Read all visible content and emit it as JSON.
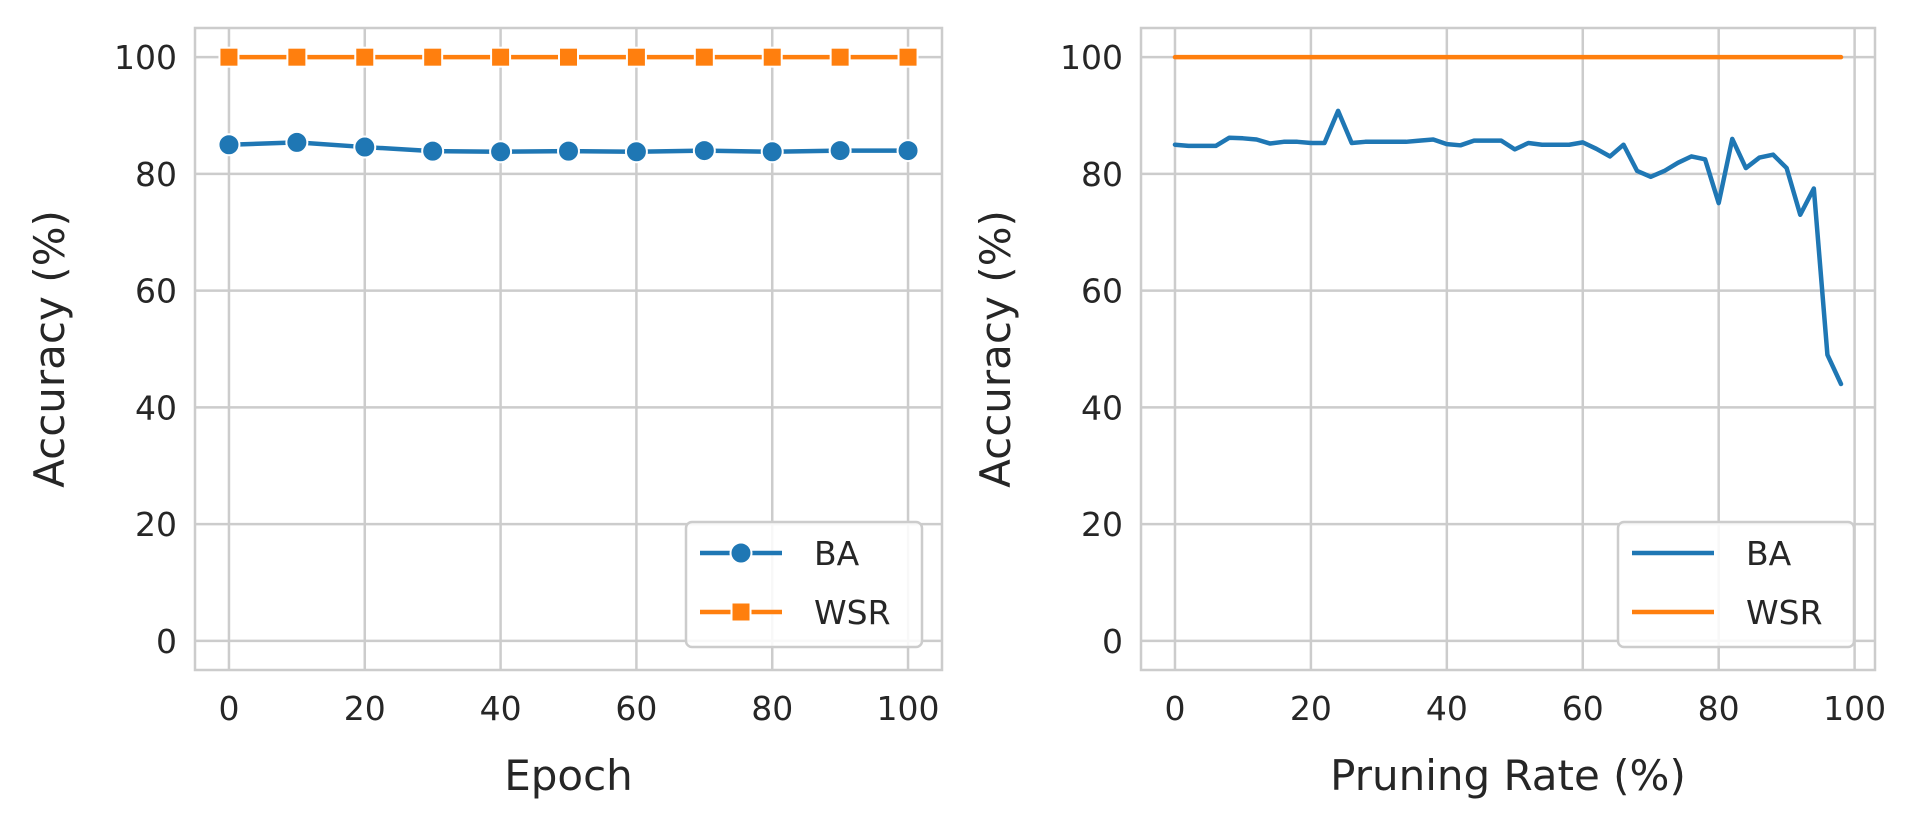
{
  "colors": {
    "BA": "#1f77b4",
    "WSR": "#ff7f0e",
    "grid": "#cccccc",
    "text": "#262626"
  },
  "chart_data": [
    {
      "type": "line",
      "xlabel": "Epoch",
      "ylabel": "Accuracy (%)",
      "xlim": [
        -5,
        105
      ],
      "ylim": [
        -5,
        105
      ],
      "xticks": [
        0,
        20,
        40,
        60,
        80,
        100
      ],
      "yticks": [
        0,
        20,
        40,
        60,
        80,
        100
      ],
      "grid": true,
      "legend_position": "lower-right",
      "markers": true,
      "x": [
        0,
        10,
        20,
        30,
        40,
        50,
        60,
        70,
        80,
        90,
        100
      ],
      "series": [
        {
          "name": "BA",
          "marker": "circle",
          "values": [
            85.0,
            85.4,
            84.6,
            83.9,
            83.8,
            83.9,
            83.8,
            84.0,
            83.8,
            84.0,
            84.0
          ]
        },
        {
          "name": "WSR",
          "marker": "square",
          "values": [
            100,
            100,
            100,
            100,
            100,
            100,
            100,
            100,
            100,
            100,
            100
          ]
        }
      ]
    },
    {
      "type": "line",
      "xlabel": "Pruning Rate (%)",
      "ylabel": "Accuracy (%)",
      "xlim": [
        -5,
        103
      ],
      "ylim": [
        -5,
        105
      ],
      "xticks": [
        0,
        20,
        40,
        60,
        80,
        100
      ],
      "yticks": [
        0,
        20,
        40,
        60,
        80,
        100
      ],
      "grid": true,
      "legend_position": "lower-right",
      "markers": false,
      "x": [
        0,
        2,
        4,
        6,
        8,
        10,
        12,
        14,
        16,
        18,
        20,
        22,
        24,
        26,
        28,
        30,
        32,
        34,
        36,
        38,
        40,
        42,
        44,
        46,
        48,
        50,
        52,
        54,
        56,
        58,
        60,
        62,
        64,
        66,
        68,
        70,
        72,
        74,
        76,
        78,
        80,
        82,
        84,
        86,
        88,
        90,
        92,
        94,
        96,
        98
      ],
      "series": [
        {
          "name": "BA",
          "values": [
            85.0,
            84.8,
            84.8,
            84.8,
            86.2,
            86.1,
            85.9,
            85.2,
            85.5,
            85.5,
            85.3,
            85.3,
            90.8,
            85.3,
            85.5,
            85.5,
            85.5,
            85.5,
            85.7,
            85.9,
            85.1,
            84.9,
            85.7,
            85.7,
            85.7,
            84.2,
            85.3,
            85.0,
            85.0,
            85.0,
            85.4,
            84.3,
            83.0,
            85.0,
            80.5,
            79.5,
            80.5,
            81.9,
            83.0,
            82.5,
            75.0,
            86.0,
            81.0,
            82.8,
            83.3,
            81.0,
            73.0,
            77.5,
            49.0,
            44.0
          ]
        },
        {
          "name": "WSR",
          "values": [
            100,
            100,
            100,
            100,
            100,
            100,
            100,
            100,
            100,
            100,
            100,
            100,
            100,
            100,
            100,
            100,
            100,
            100,
            100,
            100,
            100,
            100,
            100,
            100,
            100,
            100,
            100,
            100,
            100,
            100,
            100,
            100,
            100,
            100,
            100,
            100,
            100,
            100,
            100,
            100,
            100,
            100,
            100,
            100,
            100,
            100,
            100,
            100,
            100,
            100
          ]
        }
      ]
    }
  ]
}
